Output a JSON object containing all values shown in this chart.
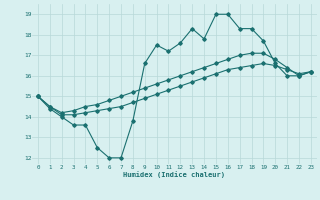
{
  "xlabel": "Humidex (Indice chaleur)",
  "bg_color": "#d8f0f0",
  "grid_color": "#b8d8d8",
  "line_color": "#1a7070",
  "xlim": [
    -0.5,
    23.5
  ],
  "ylim": [
    11.7,
    19.5
  ],
  "xticks": [
    0,
    1,
    2,
    3,
    4,
    5,
    6,
    7,
    8,
    9,
    10,
    11,
    12,
    13,
    14,
    15,
    16,
    17,
    18,
    19,
    20,
    21,
    22,
    23
  ],
  "yticks": [
    12,
    13,
    14,
    15,
    16,
    17,
    18,
    19
  ],
  "line1_x": [
    0,
    1,
    2,
    3,
    4,
    5,
    6,
    7,
    8,
    9,
    10,
    11,
    12,
    13,
    14,
    15,
    16,
    17,
    18,
    19,
    20,
    21,
    22,
    23
  ],
  "line1_y": [
    15.0,
    14.4,
    14.0,
    13.6,
    13.6,
    12.5,
    12.0,
    12.0,
    13.8,
    16.6,
    17.5,
    17.2,
    17.6,
    18.3,
    17.8,
    19.0,
    19.0,
    18.3,
    18.3,
    17.7,
    16.6,
    16.0,
    16.0,
    16.2
  ],
  "line2_x": [
    0,
    1,
    2,
    3,
    4,
    5,
    6,
    7,
    8,
    9,
    10,
    11,
    12,
    13,
    14,
    15,
    16,
    17,
    18,
    19,
    20,
    21,
    22,
    23
  ],
  "line2_y": [
    15.0,
    14.5,
    14.1,
    14.1,
    14.2,
    14.3,
    14.4,
    14.5,
    14.7,
    14.9,
    15.1,
    15.3,
    15.5,
    15.7,
    15.9,
    16.1,
    16.3,
    16.4,
    16.5,
    16.6,
    16.5,
    16.3,
    16.1,
    16.2
  ],
  "line3_x": [
    0,
    1,
    2,
    3,
    4,
    5,
    6,
    7,
    8,
    9,
    10,
    11,
    12,
    13,
    14,
    15,
    16,
    17,
    18,
    19,
    20,
    21,
    22,
    23
  ],
  "line3_y": [
    15.0,
    14.5,
    14.2,
    14.3,
    14.5,
    14.6,
    14.8,
    15.0,
    15.2,
    15.4,
    15.6,
    15.8,
    16.0,
    16.2,
    16.4,
    16.6,
    16.8,
    17.0,
    17.1,
    17.1,
    16.8,
    16.4,
    16.0,
    16.2
  ]
}
